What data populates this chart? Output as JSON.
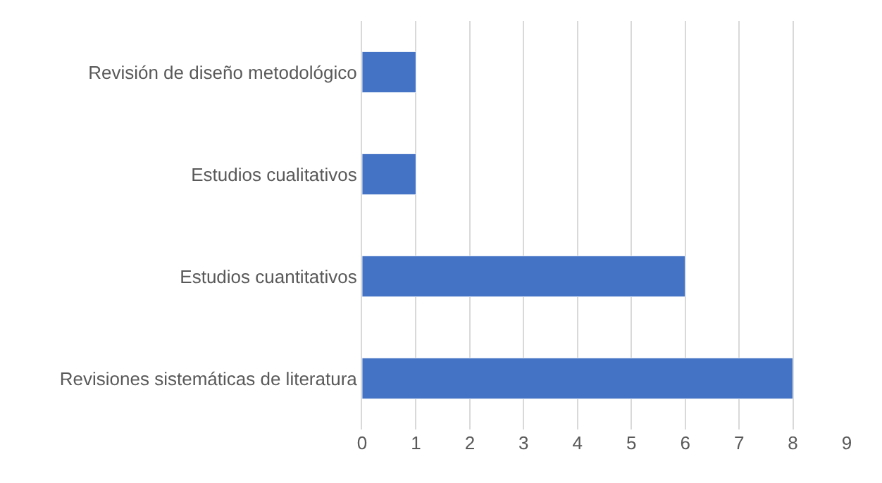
{
  "chart_data": {
    "type": "bar",
    "orientation": "horizontal",
    "categories": [
      "Revisión de diseño metodológico",
      "Estudios cualitativos",
      "Estudios cuantitativos",
      "Revisiones sistemáticas de literatura"
    ],
    "values": [
      1,
      1,
      6,
      8
    ],
    "color": "#4472c4",
    "xlim": [
      0,
      9
    ],
    "xticks": [
      0,
      1,
      2,
      3,
      4,
      5,
      6,
      7,
      8,
      9
    ],
    "grid": "x"
  }
}
